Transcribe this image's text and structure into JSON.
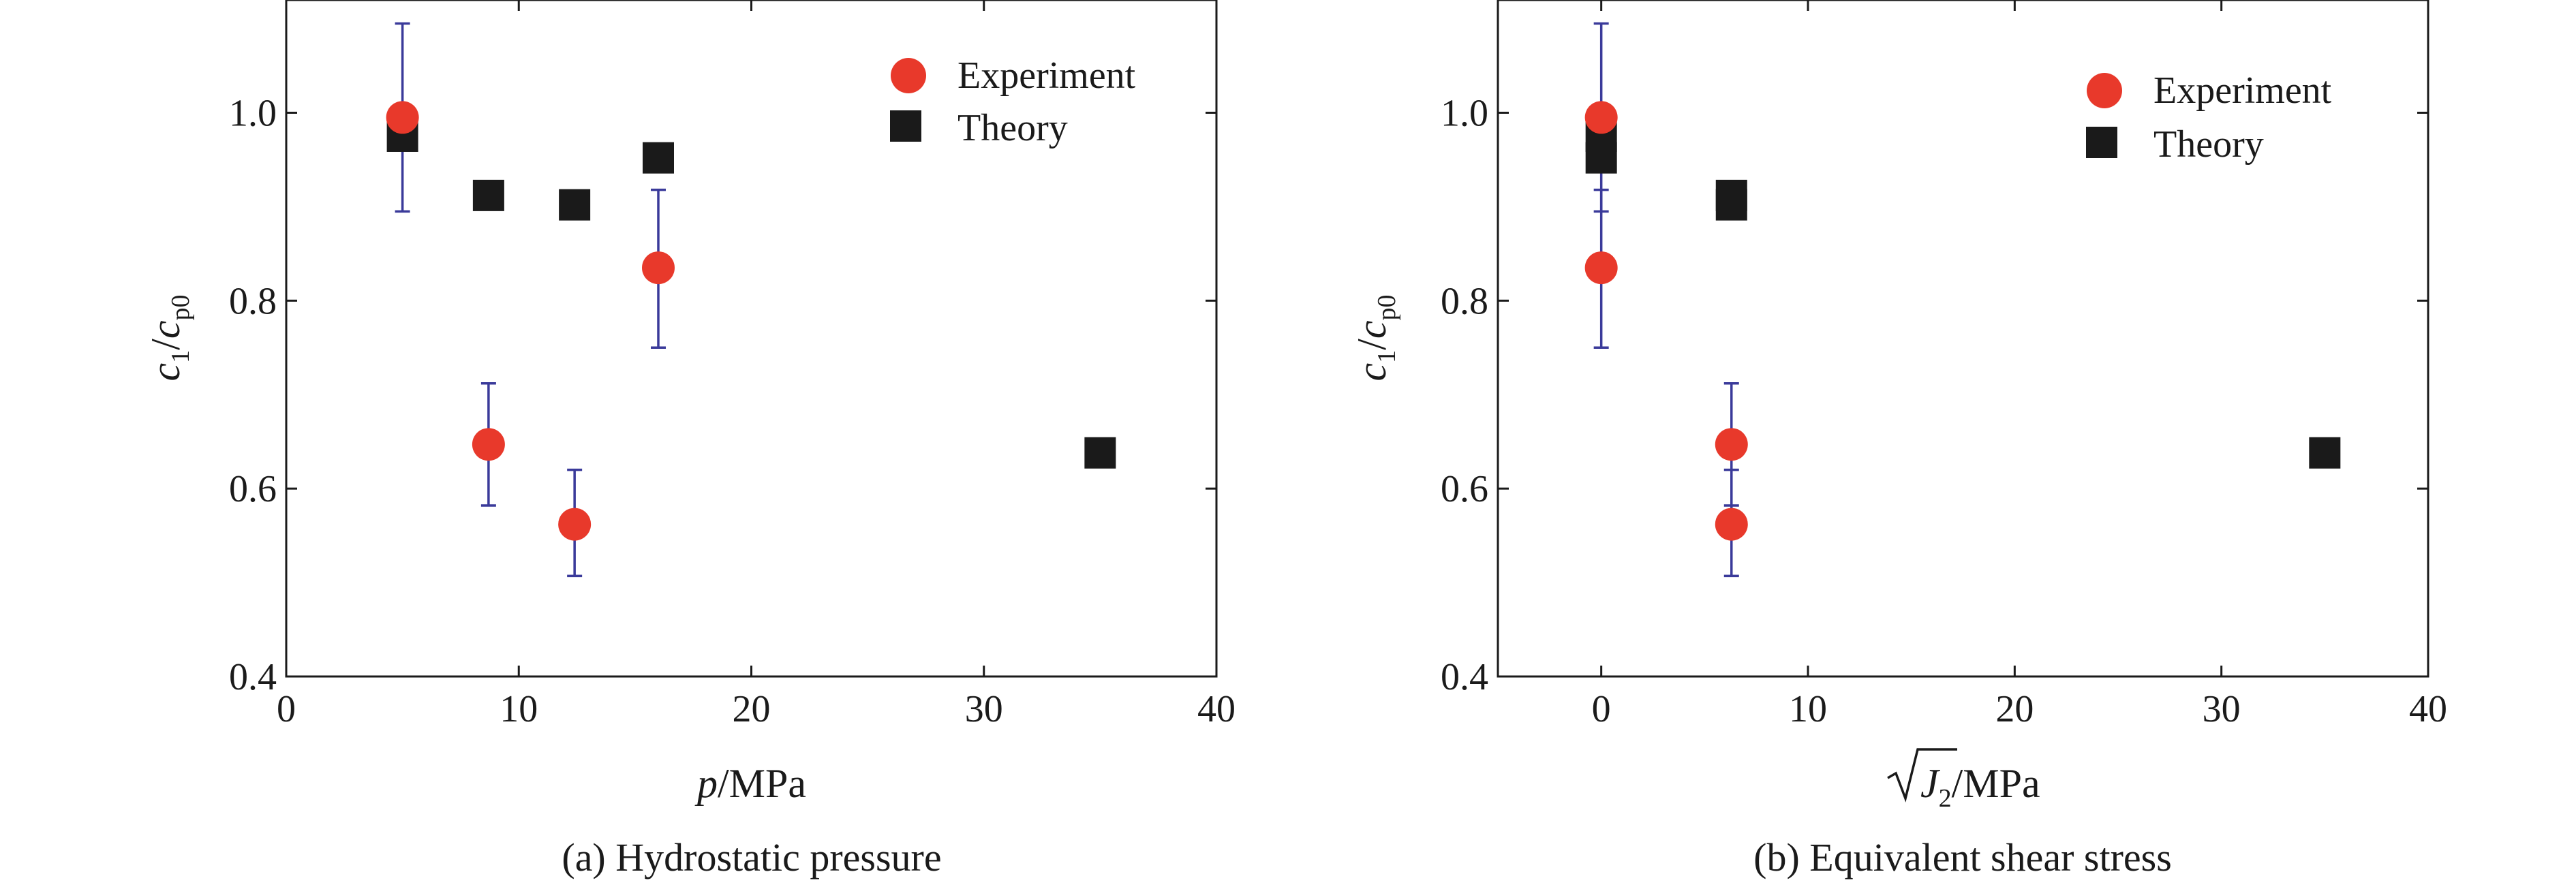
{
  "figure": {
    "colors": {
      "experiment": "#e8392b",
      "theory": "#1a1a1a",
      "error_bar": "#3a3a9a",
      "axis": "#1a1a1a"
    }
  },
  "chart_data": [
    {
      "type": "scatter",
      "caption": "(a) Hydrostatic pressure",
      "xlabel": {
        "italic": "p",
        "rest": "/MPa"
      },
      "ylabel": {
        "c": "c",
        "c_sub": "1",
        "slash": "/",
        "cp": "c",
        "cp_sub": "p0"
      },
      "xlim": [
        0,
        40
      ],
      "ylim": [
        0.4,
        1.12
      ],
      "xticks": [
        0,
        10,
        20,
        30,
        40
      ],
      "xtick_labels": [
        "0",
        "10",
        "20",
        "30",
        "40"
      ],
      "yticks": [
        0.4,
        0.6,
        0.8,
        1.0
      ],
      "ytick_labels": [
        "0.4",
        "0.6",
        "0.8",
        "1.0"
      ],
      "legend": {
        "position": "top-right",
        "entries": [
          "Experiment",
          "Theory"
        ]
      },
      "grid": false,
      "series": [
        {
          "name": "Experiment",
          "marker": "circle",
          "points": [
            {
              "x": 5,
              "y": 0.995,
              "err_low": 0.895,
              "err_high": 1.095
            },
            {
              "x": 8.7,
              "y": 0.647,
              "err_low": 0.582,
              "err_high": 0.712
            },
            {
              "x": 12.4,
              "y": 0.562,
              "err_low": 0.507,
              "err_high": 0.62
            },
            {
              "x": 16,
              "y": 0.835,
              "err_low": 0.75,
              "err_high": 0.918
            }
          ]
        },
        {
          "name": "Theory",
          "marker": "square",
          "points": [
            {
              "x": 5,
              "y": 0.975
            },
            {
              "x": 8.7,
              "y": 0.912
            },
            {
              "x": 12.4,
              "y": 0.902
            },
            {
              "x": 16,
              "y": 0.952
            },
            {
              "x": 35,
              "y": 0.638
            }
          ]
        }
      ]
    },
    {
      "type": "scatter",
      "caption": "(b) Equivalent shear stress",
      "xlabel": {
        "sqrt": "J",
        "sqrt_sub": "2",
        "rest": "/MPa"
      },
      "ylabel": {
        "c": "c",
        "c_sub": "1",
        "slash": "/",
        "cp": "c",
        "cp_sub": "p0"
      },
      "xlim": [
        -5,
        40
      ],
      "ylim": [
        0.4,
        1.12
      ],
      "xticks": [
        0,
        10,
        20,
        30,
        40
      ],
      "xtick_labels": [
        "0",
        "10",
        "20",
        "30",
        "40"
      ],
      "yticks": [
        0.4,
        0.6,
        0.8,
        1.0
      ],
      "ytick_labels": [
        "0.4",
        "0.6",
        "0.8",
        "1.0"
      ],
      "legend": {
        "position": "top-right",
        "entries": [
          "Experiment",
          "Theory"
        ]
      },
      "grid": false,
      "series": [
        {
          "name": "Experiment",
          "marker": "circle",
          "points": [
            {
              "x": 0,
              "y": 0.995,
              "err_low": 0.895,
              "err_high": 1.095
            },
            {
              "x": 0,
              "y": 0.835,
              "err_low": 0.75,
              "err_high": 0.918
            },
            {
              "x": 6.3,
              "y": 0.647,
              "err_low": 0.582,
              "err_high": 0.712
            },
            {
              "x": 6.3,
              "y": 0.562,
              "err_low": 0.507,
              "err_high": 0.62
            }
          ]
        },
        {
          "name": "Theory",
          "marker": "square",
          "points": [
            {
              "x": 0,
              "y": 0.975
            },
            {
              "x": 0,
              "y": 0.952
            },
            {
              "x": 6.3,
              "y": 0.912
            },
            {
              "x": 6.3,
              "y": 0.902
            },
            {
              "x": 35,
              "y": 0.638
            }
          ]
        }
      ]
    }
  ]
}
